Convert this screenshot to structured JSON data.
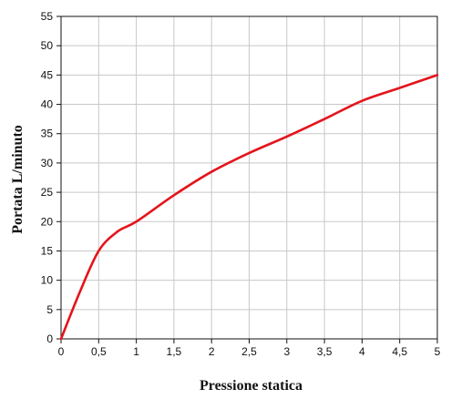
{
  "chart_data": {
    "type": "line",
    "title": "",
    "xlabel": "Pressione statica",
    "ylabel": "Portata L/minuto",
    "xlim": [
      0,
      5
    ],
    "ylim": [
      0,
      55
    ],
    "x_ticks": [
      0,
      0.5,
      1,
      1.5,
      2,
      2.5,
      3,
      3.5,
      4,
      4.5,
      5
    ],
    "x_tick_labels": [
      "0",
      "0,5",
      "1",
      "1,5",
      "2",
      "2,5",
      "3",
      "3,5",
      "4",
      "4,5",
      "5"
    ],
    "y_ticks": [
      0,
      5,
      10,
      15,
      20,
      25,
      30,
      35,
      40,
      45,
      50,
      55
    ],
    "y_tick_labels": [
      "0",
      "5",
      "10",
      "15",
      "20",
      "25",
      "30",
      "35",
      "40",
      "45",
      "50",
      "55"
    ],
    "grid": true,
    "legend": "none",
    "series": [
      {
        "color": "#e4141b",
        "x": [
          0,
          0.25,
          0.5,
          0.75,
          1,
          1.5,
          2,
          2.5,
          3,
          3.5,
          4,
          4.5,
          5
        ],
        "y": [
          0,
          8,
          15,
          18.3,
          20,
          24.5,
          28.5,
          31.7,
          34.5,
          37.5,
          40.6,
          42.8,
          45
        ]
      }
    ]
  }
}
